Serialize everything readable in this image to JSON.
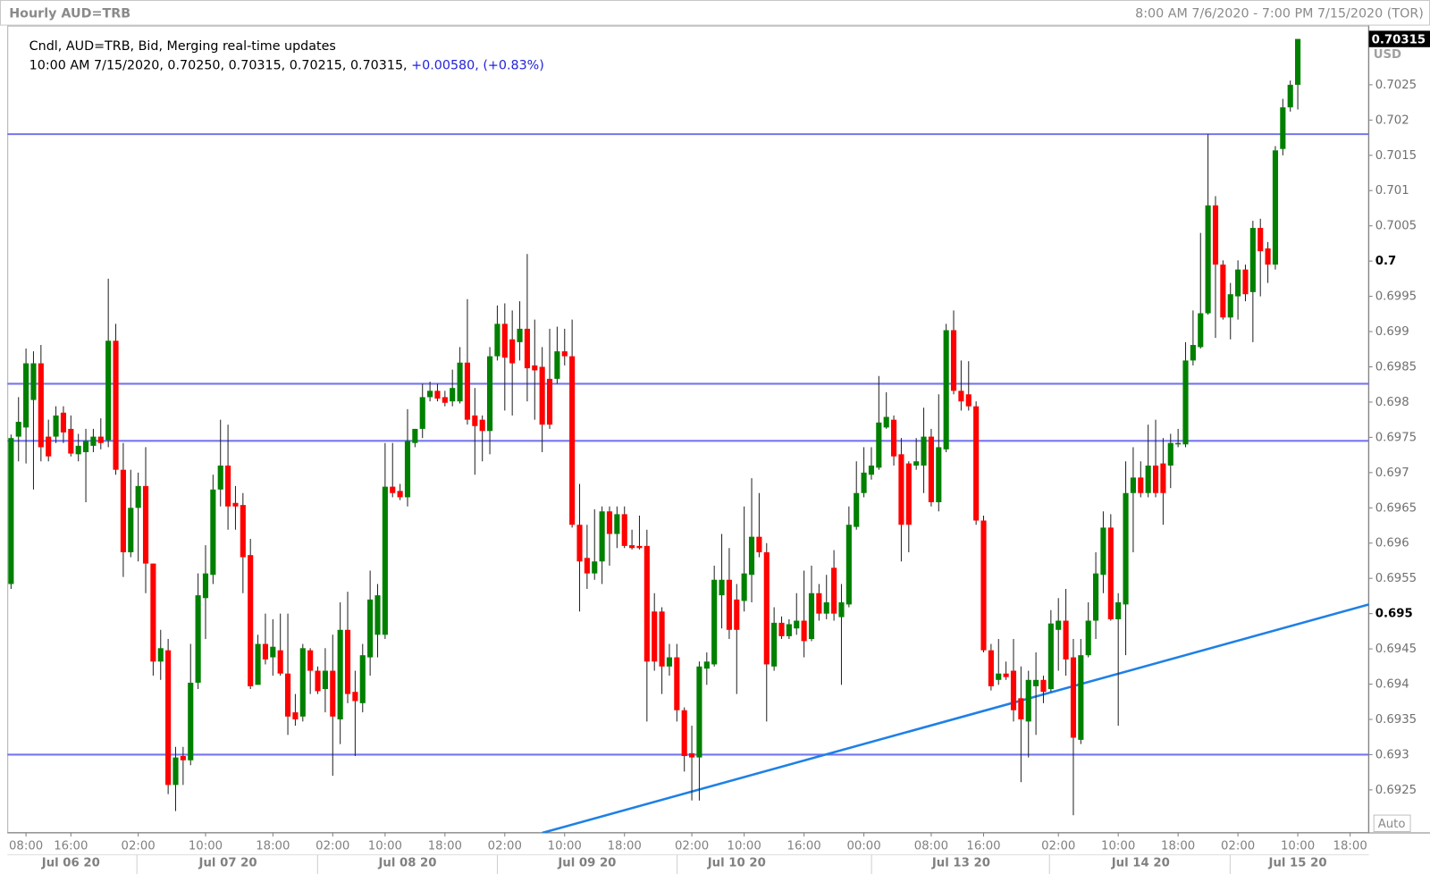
{
  "chart_data": {
    "type": "candlestick",
    "title": "Hourly AUD=TRB",
    "date_range": "8:00 AM 7/6/2020 - 7:00 PM 7/15/2020 (TOR)",
    "info": {
      "line1": "Cndl, AUD=TRB, Bid, Merging real-time updates",
      "line2": "10:00 AM 7/15/2020, 0.70250, 0.70315, 0.70215, 0.70315,",
      "change": "+0.00580,",
      "change_pct": "(+0.83%)"
    },
    "currency": "USD",
    "scale_mode": "Auto",
    "last_price": 0.70315,
    "up_color": "#008000",
    "down_color": "#ff0000",
    "level_color": "#7575ee",
    "trend_color": "#1e80e6",
    "xlim": [
      -0.5,
      181.5
    ],
    "ylim": [
      0.69189,
      0.70334
    ],
    "yticks": [
      0.6925,
      0.693,
      0.6935,
      0.694,
      0.6945,
      0.695,
      0.6955,
      0.696,
      0.6965,
      0.697,
      0.6975,
      0.698,
      0.6985,
      0.699,
      0.6995,
      0.7,
      0.7005,
      0.701,
      0.7015,
      0.702,
      0.7025
    ],
    "xticks": [
      {
        "value": 2,
        "label": "08:00"
      },
      {
        "value": 8,
        "label": "16:00"
      },
      {
        "value": 17,
        "label": "02:00"
      },
      {
        "value": 26,
        "label": "10:00"
      },
      {
        "value": 35,
        "label": "18:00"
      },
      {
        "value": 43,
        "label": "02:00"
      },
      {
        "value": 50,
        "label": "10:00"
      },
      {
        "value": 58,
        "label": "18:00"
      },
      {
        "value": 66,
        "label": "02:00"
      },
      {
        "value": 74,
        "label": "10:00"
      },
      {
        "value": 82,
        "label": "18:00"
      },
      {
        "value": 91,
        "label": "02:00"
      },
      {
        "value": 98,
        "label": "10:00"
      },
      {
        "value": 106,
        "label": "16:00"
      },
      {
        "value": 114,
        "label": "00:00"
      },
      {
        "value": 123,
        "label": "08:00"
      },
      {
        "value": 130,
        "label": "16:00"
      },
      {
        "value": 140,
        "label": "02:00"
      },
      {
        "value": 148,
        "label": "10:00"
      },
      {
        "value": 156,
        "label": "18:00"
      },
      {
        "value": 164,
        "label": "02:00"
      },
      {
        "value": 172,
        "label": "10:00"
      },
      {
        "value": 179,
        "label": "18:00"
      }
    ],
    "xticks_dates": [
      {
        "value": 8,
        "label": "Jul 06 20"
      },
      {
        "value": 29,
        "label": "Jul 07 20"
      },
      {
        "value": 53,
        "label": "Jul 08 20"
      },
      {
        "value": 77,
        "label": "Jul 09 20"
      },
      {
        "value": 97,
        "label": "Jul 10 20"
      },
      {
        "value": 127,
        "label": "Jul 13 20"
      },
      {
        "value": 151,
        "label": "Jul 14 20"
      },
      {
        "value": 172,
        "label": "Jul 15 20"
      }
    ],
    "levels": [
      0.7018,
      0.69826,
      0.69745,
      0.693
    ],
    "trendline": {
      "x": [
        71,
        181.5
      ],
      "y": [
        0.69189,
        0.69513
      ]
    },
    "open": [
      0.69542,
      0.69751,
      0.69764,
      0.69803,
      0.69855,
      0.69751,
      0.69751,
      0.69785,
      0.69762,
      0.69726,
      0.69729,
      0.69738,
      0.69751,
      0.69746,
      0.69887,
      0.69704,
      0.69587,
      0.6965,
      0.69681,
      0.69571,
      0.69432,
      0.69448,
      0.69257,
      0.69298,
      0.69292,
      0.69402,
      0.69522,
      0.69555,
      0.69676,
      0.6971,
      0.69657,
      0.69654,
      0.69583,
      0.69399,
      0.69457,
      0.69438,
      0.69448,
      0.69415,
      0.6936,
      0.69354,
      0.69448,
      0.69419,
      0.69393,
      0.69419,
      0.6935,
      0.69477,
      0.69389,
      0.69373,
      0.69438,
      0.6947,
      0.6947,
      0.6968,
      0.69674,
      0.69665,
      0.69742,
      0.69762,
      0.69807,
      0.69816,
      0.69807,
      0.69801,
      0.69801,
      0.69856,
      0.69781,
      0.69775,
      0.69759,
      0.69865,
      0.69911,
      0.69889,
      0.69885,
      0.69904,
      0.69852,
      0.6985,
      0.69833,
      0.69833,
      0.69872,
      0.69865,
      0.69626,
      0.69579,
      0.69557,
      0.69574,
      0.69645,
      0.69613,
      0.69641,
      0.69597,
      0.69596,
      0.69596,
      0.69503,
      0.69503,
      0.69425,
      0.69438,
      0.69363,
      0.69302,
      0.69296,
      0.69422,
      0.69428,
      0.69526,
      0.69548,
      0.6952,
      0.69518,
      0.69555,
      0.69609,
      0.69587,
      0.69425,
      0.69487,
      0.69468,
      0.69479,
      0.6949,
      0.69464,
      0.69529,
      0.695,
      0.69565,
      0.69495,
      0.69513,
      0.69623,
      0.69671,
      0.69697,
      0.69707,
      0.69764,
      0.69775,
      0.69726,
      0.69713,
      0.6971,
      0.6971,
      0.69751,
      0.69658,
      0.69733,
      0.69902,
      0.69816,
      0.69811,
      0.69794,
      0.69632,
      0.69448,
      0.69406,
      0.69415,
      0.69419,
      0.6938,
      0.69347,
      0.69397,
      0.69406,
      0.69393,
      0.69477,
      0.6949,
      0.69438,
      0.69321,
      0.69441,
      0.6949,
      0.69555,
      0.69622,
      0.69492,
      0.69513,
      0.69671,
      0.69693,
      0.69671,
      0.6971,
      0.69713,
      0.6971,
      0.6974,
      0.6974,
      0.69859,
      0.69878,
      0.69926,
      0.70079,
      0.69995,
      0.6992,
      0.6995,
      0.69988,
      0.69956,
      0.70047,
      0.70018,
      0.69995,
      0.70159,
      0.70218,
      0.7025
    ],
    "high": [
      0.69754,
      0.69807,
      0.69876,
      0.69872,
      0.69881,
      0.69775,
      0.69794,
      0.69794,
      0.69781,
      0.69755,
      0.69762,
      0.69762,
      0.69777,
      0.69975,
      0.69911,
      0.69742,
      0.69704,
      0.697,
      0.69736,
      0.69571,
      0.69477,
      0.69464,
      0.69311,
      0.69311,
      0.69457,
      0.69557,
      0.69597,
      0.69697,
      0.69775,
      0.69768,
      0.69681,
      0.69671,
      0.69606,
      0.6947,
      0.695,
      0.69492,
      0.695,
      0.695,
      0.69386,
      0.69457,
      0.69451,
      0.69425,
      0.69451,
      0.6947,
      0.69516,
      0.69531,
      0.69419,
      0.69457,
      0.69561,
      0.69542,
      0.69742,
      0.69742,
      0.69684,
      0.6979,
      0.69762,
      0.69826,
      0.69829,
      0.69826,
      0.69816,
      0.69846,
      0.69878,
      0.69946,
      0.6982,
      0.69781,
      0.69878,
      0.69937,
      0.6994,
      0.6993,
      0.69943,
      0.7001,
      0.69917,
      0.69878,
      0.69904,
      0.69907,
      0.69904,
      0.69917,
      0.69684,
      0.69626,
      0.69648,
      0.69652,
      0.69652,
      0.69652,
      0.69652,
      0.69619,
      0.69639,
      0.69619,
      0.69529,
      0.69509,
      0.69457,
      0.69457,
      0.69367,
      0.69341,
      0.69432,
      0.69445,
      0.69568,
      0.69613,
      0.69593,
      0.69542,
      0.69652,
      0.69692,
      0.69671,
      0.696,
      0.69509,
      0.69496,
      0.69492,
      0.69529,
      0.69561,
      0.69568,
      0.69542,
      0.69555,
      0.6959,
      0.69542,
      0.69652,
      0.69716,
      0.69736,
      0.69736,
      0.69837,
      0.69814,
      0.69781,
      0.69749,
      0.69716,
      0.69749,
      0.69792,
      0.69762,
      0.69811,
      0.69911,
      0.6993,
      0.69859,
      0.69858,
      0.69801,
      0.69639,
      0.69457,
      0.69464,
      0.69432,
      0.69464,
      0.69425,
      0.69419,
      0.69445,
      0.69412,
      0.69505,
      0.69522,
      0.69535,
      0.69464,
      0.69464,
      0.69516,
      0.69587,
      0.69645,
      0.69641,
      0.69529,
      0.69716,
      0.69736,
      0.69716,
      0.69768,
      0.69775,
      0.69749,
      0.69755,
      0.69762,
      0.69885,
      0.6993,
      0.7004,
      0.7018,
      0.70092,
      0.70001,
      0.69969,
      0.70001,
      0.69995,
      0.70057,
      0.7006,
      0.70027,
      0.70163,
      0.7023,
      0.70256,
      0.70315
    ],
    "low": [
      0.69535,
      0.69716,
      0.69713,
      0.69676,
      0.69716,
      0.69716,
      0.69742,
      0.69742,
      0.69723,
      0.69716,
      0.69658,
      0.69729,
      0.69733,
      0.69736,
      0.69697,
      0.69552,
      0.6958,
      0.69574,
      0.69529,
      0.69412,
      0.69406,
      0.69244,
      0.6922,
      0.69257,
      0.69285,
      0.69393,
      0.69464,
      0.69542,
      0.69652,
      0.69619,
      0.69619,
      0.69529,
      0.69393,
      0.69399,
      0.69428,
      0.69412,
      0.69412,
      0.69328,
      0.69341,
      0.69347,
      0.69386,
      0.69386,
      0.6936,
      0.6927,
      0.69315,
      0.69373,
      0.69298,
      0.6936,
      0.69412,
      0.69438,
      0.69464,
      0.69665,
      0.69661,
      0.69652,
      0.69736,
      0.69749,
      0.69801,
      0.69801,
      0.69794,
      0.69794,
      0.69798,
      0.69768,
      0.69697,
      0.69716,
      0.69726,
      0.69859,
      0.69788,
      0.69781,
      0.69859,
      0.69801,
      0.69775,
      0.69729,
      0.69762,
      0.69826,
      0.69852,
      0.69622,
      0.69503,
      0.69535,
      0.69548,
      0.69542,
      0.69568,
      0.69593,
      0.69593,
      0.69591,
      0.69591,
      0.69347,
      0.69419,
      0.69386,
      0.69412,
      0.69347,
      0.69276,
      0.69235,
      0.69235,
      0.69399,
      0.69425,
      0.69479,
      0.69464,
      0.69386,
      0.69503,
      0.69516,
      0.6958,
      0.69347,
      0.69419,
      0.69464,
      0.69464,
      0.6947,
      0.69438,
      0.69461,
      0.6949,
      0.69492,
      0.6949,
      0.69399,
      0.69509,
      0.69619,
      0.69665,
      0.6969,
      0.69704,
      0.69762,
      0.6971,
      0.69574,
      0.69587,
      0.69704,
      0.69671,
      0.69652,
      0.69645,
      0.69729,
      0.69811,
      0.69788,
      0.69788,
      0.69626,
      0.69445,
      0.69391,
      0.69399,
      0.69406,
      0.69347,
      0.69261,
      0.69296,
      0.69328,
      0.69373,
      0.69389,
      0.69419,
      0.69412,
      0.69214,
      0.69315,
      0.69438,
      0.69464,
      0.69529,
      0.6949,
      0.69341,
      0.69441,
      0.69587,
      0.69665,
      0.69665,
      0.69665,
      0.69626,
      0.69678,
      0.69736,
      0.69736,
      0.69852,
      0.69876,
      0.69924,
      0.69891,
      0.69917,
      0.69889,
      0.69917,
      0.69943,
      0.69885,
      0.6995,
      0.69969,
      0.69988,
      0.7015,
      0.70212,
      0.70215
    ],
    "close": [
      0.69749,
      0.69772,
      0.69855,
      0.69855,
      0.69736,
      0.69723,
      0.69781,
      0.69757,
      0.69727,
      0.69738,
      0.69745,
      0.69751,
      0.69742,
      0.69887,
      0.69704,
      0.69587,
      0.6965,
      0.69681,
      0.69571,
      0.69432,
      0.69451,
      0.69257,
      0.69296,
      0.69292,
      0.69402,
      0.69526,
      0.69557,
      0.69676,
      0.6971,
      0.69652,
      0.69652,
      0.6958,
      0.69397,
      0.69457,
      0.69435,
      0.69453,
      0.69415,
      0.69354,
      0.6935,
      0.69451,
      0.69419,
      0.6939,
      0.69419,
      0.69354,
      0.69477,
      0.69386,
      0.69376,
      0.69441,
      0.6952,
      0.69526,
      0.6968,
      0.69671,
      0.69665,
      0.69745,
      0.69762,
      0.69807,
      0.69816,
      0.69805,
      0.69799,
      0.6982,
      0.69856,
      0.69775,
      0.69766,
      0.69759,
      0.69865,
      0.69911,
      0.69863,
      0.69855,
      0.69904,
      0.69848,
      0.69845,
      0.69768,
      0.69768,
      0.69872,
      0.69865,
      0.69626,
      0.69574,
      0.69557,
      0.69574,
      0.69645,
      0.69613,
      0.69641,
      0.69596,
      0.69593,
      0.69593,
      0.69432,
      0.69432,
      0.69425,
      0.69438,
      0.69363,
      0.69298,
      0.69296,
      0.69425,
      0.69432,
      0.69548,
      0.69548,
      0.69477,
      0.69477,
      0.69557,
      0.69609,
      0.69587,
      0.69428,
      0.69487,
      0.69468,
      0.69485,
      0.6949,
      0.69461,
      0.69529,
      0.695,
      0.69516,
      0.695,
      0.69516,
      0.69626,
      0.69671,
      0.697,
      0.6971,
      0.69771,
      0.69779,
      0.69723,
      0.69626,
      0.69626,
      0.69716,
      0.69751,
      0.69658,
      0.69736,
      0.69902,
      0.69816,
      0.69801,
      0.69794,
      0.69632,
      0.69448,
      0.69397,
      0.69415,
      0.6941,
      0.69363,
      0.6935,
      0.69406,
      0.69406,
      0.69389,
      0.69486,
      0.6949,
      0.69435,
      0.69324,
      0.69441,
      0.6949,
      0.69557,
      0.69622,
      0.69492,
      0.69516,
      0.69671,
      0.69693,
      0.69671,
      0.6971,
      0.69671,
      0.69671,
      0.69742,
      0.69742,
      0.69859,
      0.69881,
      0.69926,
      0.70079,
      0.69995,
      0.6992,
      0.69953,
      0.69988,
      0.69953,
      0.70047,
      0.70014,
      0.69995,
      0.70157,
      0.70218,
      0.7025,
      0.70315
    ]
  }
}
